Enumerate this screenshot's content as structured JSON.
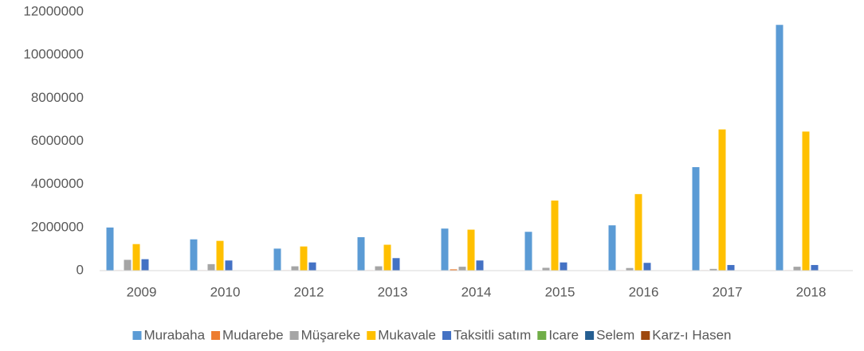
{
  "chart_data": {
    "type": "bar",
    "categories": [
      "2009",
      "2010",
      "2012",
      "2013",
      "2014",
      "2015",
      "2016",
      "2017",
      "2018"
    ],
    "series": [
      {
        "name": "Murabaha",
        "color": "#5b9bd5",
        "values": [
          2000000,
          1450000,
          1020000,
          1550000,
          1950000,
          1800000,
          2100000,
          4800000,
          11400000
        ]
      },
      {
        "name": "Mudarebe",
        "color": "#ed7d31",
        "values": [
          20000,
          20000,
          20000,
          20000,
          60000,
          20000,
          20000,
          20000,
          20000
        ]
      },
      {
        "name": "Müşareke",
        "color": "#a5a5a5",
        "values": [
          500000,
          300000,
          200000,
          200000,
          180000,
          130000,
          120000,
          80000,
          180000
        ]
      },
      {
        "name": "Mukavale",
        "color": "#ffc000",
        "values": [
          1230000,
          1380000,
          1120000,
          1200000,
          1900000,
          3250000,
          3550000,
          6550000,
          6450000
        ]
      },
      {
        "name": "Taksitli satım",
        "color": "#4472c4",
        "values": [
          530000,
          470000,
          380000,
          580000,
          470000,
          380000,
          360000,
          260000,
          260000
        ]
      },
      {
        "name": "Icare",
        "color": "#70ad47",
        "values": [
          0,
          0,
          0,
          0,
          0,
          0,
          0,
          0,
          0
        ]
      },
      {
        "name": "Selem",
        "color": "#255e91",
        "values": [
          0,
          0,
          0,
          0,
          0,
          0,
          0,
          0,
          0
        ]
      },
      {
        "name": "Karz-ı Hasen",
        "color": "#9e480e",
        "values": [
          0,
          0,
          0,
          0,
          0,
          0,
          0,
          0,
          0
        ]
      }
    ],
    "ylim": [
      0,
      12000000
    ],
    "yticks": [
      0,
      2000000,
      4000000,
      6000000,
      8000000,
      10000000,
      12000000
    ],
    "grid": false,
    "legend": "bottom"
  }
}
